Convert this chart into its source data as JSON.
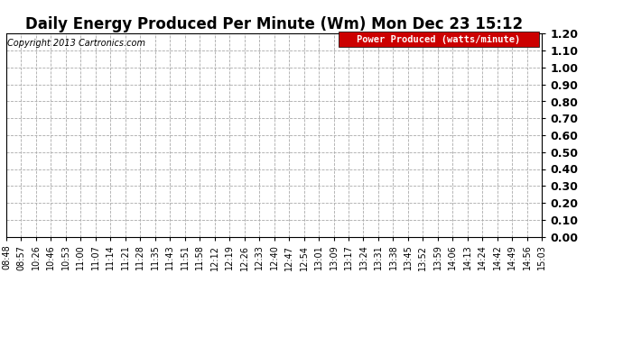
{
  "title": "Daily Energy Produced Per Minute (Wm) Mon Dec 23 15:12",
  "copyright_text": "Copyright 2013 Cartronics.com",
  "legend_label": "Power Produced (watts/minute)",
  "legend_bg": "#cc0000",
  "legend_fg": "#ffffff",
  "ylim": [
    0.0,
    1.2
  ],
  "yticks": [
    0.0,
    0.1,
    0.2,
    0.3,
    0.4,
    0.5,
    0.6,
    0.7,
    0.8,
    0.9,
    1.0,
    1.1,
    1.2
  ],
  "xtick_labels": [
    "08:48",
    "08:57",
    "10:26",
    "10:46",
    "10:53",
    "11:00",
    "11:07",
    "11:14",
    "11:21",
    "11:28",
    "11:35",
    "11:43",
    "11:51",
    "11:58",
    "12:12",
    "12:19",
    "12:26",
    "12:33",
    "12:40",
    "12:47",
    "12:54",
    "13:01",
    "13:09",
    "13:17",
    "13:24",
    "13:31",
    "13:38",
    "13:45",
    "13:52",
    "13:59",
    "14:06",
    "14:13",
    "14:24",
    "14:42",
    "14:49",
    "14:56",
    "15:03"
  ],
  "background_color": "#ffffff",
  "grid_color": "#aaaaaa",
  "grid_style": "--",
  "title_fontsize": 12,
  "tick_fontsize": 7,
  "ytick_fontsize": 9,
  "copyright_fontsize": 7,
  "legend_fontsize": 7.5
}
